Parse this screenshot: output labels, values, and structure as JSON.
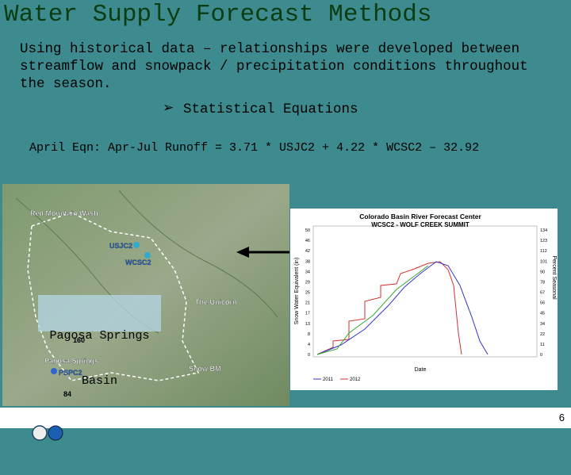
{
  "title": "Water Supply Forecast Methods",
  "intro_lines": [
    "Using historical data – relationships were developed between",
    "streamflow and snowpack / precipitation conditions throughout",
    "the season."
  ],
  "bullet": "Statistical Equations",
  "equation": "April Eqn: Apr-Jul Runoff = 3.71 * USJC2 + 4.22 * WCSC2 – 32.92",
  "map": {
    "labels": [
      "Red Mountain Wash",
      "USJC2",
      "WCSC2",
      "The Unicorn",
      "Pagosa Springs",
      "PSPC2",
      "Snow BM",
      "160",
      "84"
    ],
    "basin_label": [
      "Pagosa Springs",
      "Basin"
    ]
  },
  "chart_image": {
    "title": "Colorado Basin River Forecast Center",
    "subtitle": "WCSC2 - WOLF CREEK SUMMIT",
    "y_label": "Snow Water Equivalent (in)",
    "y2_label": "Percent Seasonal",
    "x_label": "Date",
    "y_ticks": [
      "50",
      "46",
      "42",
      "38",
      "34",
      "29",
      "25",
      "21",
      "17",
      "13",
      "8",
      "4",
      "0"
    ],
    "y2_ticks": [
      "134",
      "123",
      "112",
      "101",
      "90",
      "78",
      "67",
      "56",
      "45",
      "34",
      "22",
      "11",
      "0"
    ],
    "legend": [
      "2011",
      "2012"
    ]
  },
  "page_number": "6"
}
